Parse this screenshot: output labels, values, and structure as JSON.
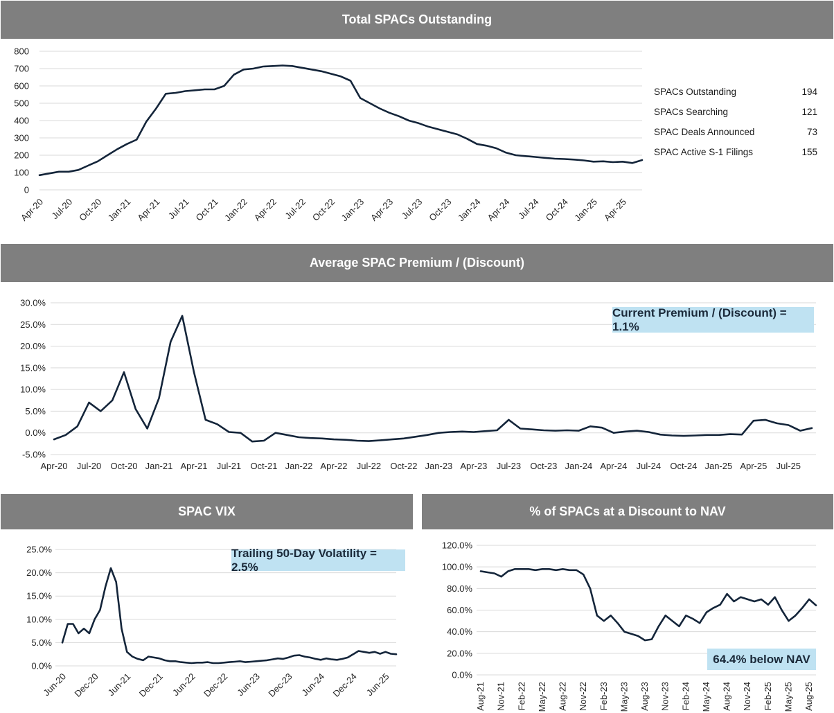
{
  "panels": {
    "outstanding_title": "Total SPACs Outstanding",
    "premium_title": "Average SPAC Premium / (Discount)",
    "vix_title": "SPAC VIX",
    "discount_title": "% of SPACs at a Discount to NAV"
  },
  "stats": [
    {
      "label": "SPACs Outstanding",
      "value": "194"
    },
    {
      "label": "SPACs Searching",
      "value": "121"
    },
    {
      "label": "SPAC Deals Announced",
      "value": "73"
    },
    {
      "label": "SPAC Active S-1 Filings",
      "value": "155"
    }
  ],
  "callouts": {
    "premium": "Current Premium / (Discount) = 1.1%",
    "vix": "Trailing 50-Day Volatility = 2.5%",
    "discount": "64.4% below NAV"
  },
  "colors": {
    "line": "#14253a",
    "header_bg": "#7f7f7f",
    "callout_bg": "#bfe2f2",
    "grid": "#d9d9d9"
  },
  "chart_data": [
    {
      "id": "outstanding",
      "type": "line",
      "title": "Total SPACs Outstanding",
      "ylim": [
        0,
        800
      ],
      "yticks": [
        "0",
        "100",
        "200",
        "300",
        "400",
        "500",
        "600",
        "700",
        "800"
      ],
      "xticks": [
        "Apr-20",
        "Jul-20",
        "Oct-20",
        "Jan-21",
        "Apr-21",
        "Jul-21",
        "Oct-21",
        "Jan-22",
        "Apr-22",
        "Jul-22",
        "Oct-22",
        "Jan-23",
        "Apr-23",
        "Jul-23",
        "Oct-23",
        "Jan-24",
        "Apr-24",
        "Jul-24",
        "Oct-24",
        "Jan-25",
        "Apr-25"
      ],
      "xtick_rotation": -45,
      "grid": true,
      "x": [
        "2020-04",
        "2020-05",
        "2020-06",
        "2020-07",
        "2020-08",
        "2020-09",
        "2020-10",
        "2020-11",
        "2020-12",
        "2021-01",
        "2021-02",
        "2021-03",
        "2021-04",
        "2021-05",
        "2021-06",
        "2021-07",
        "2021-08",
        "2021-09",
        "2021-10",
        "2021-11",
        "2021-12",
        "2022-01",
        "2022-02",
        "2022-03",
        "2022-04",
        "2022-05",
        "2022-06",
        "2022-07",
        "2022-08",
        "2022-09",
        "2022-10",
        "2022-11",
        "2022-12",
        "2023-01",
        "2023-02",
        "2023-03",
        "2023-04",
        "2023-05",
        "2023-06",
        "2023-07",
        "2023-08",
        "2023-09",
        "2023-10",
        "2023-11",
        "2023-12",
        "2024-01",
        "2024-02",
        "2024-03",
        "2024-04",
        "2024-05",
        "2024-06",
        "2024-07",
        "2024-08",
        "2024-09",
        "2024-10",
        "2024-11",
        "2024-12",
        "2025-01",
        "2025-02",
        "2025-03",
        "2025-04",
        "2025-05",
        "2025-06"
      ],
      "y": [
        85,
        95,
        105,
        105,
        115,
        140,
        165,
        200,
        235,
        265,
        290,
        395,
        470,
        555,
        560,
        570,
        575,
        580,
        580,
        600,
        665,
        695,
        700,
        712,
        715,
        718,
        715,
        705,
        695,
        685,
        670,
        655,
        630,
        530,
        500,
        470,
        445,
        425,
        400,
        385,
        365,
        350,
        335,
        320,
        295,
        265,
        255,
        240,
        215,
        200,
        195,
        190,
        185,
        180,
        178,
        175,
        170,
        163,
        165,
        160,
        163,
        155,
        172
      ]
    },
    {
      "id": "premium",
      "type": "line",
      "title": "Average SPAC Premium / (Discount)",
      "ylim": [
        -5,
        30
      ],
      "yticks": [
        "-5.0%",
        "0.0%",
        "5.0%",
        "10.0%",
        "15.0%",
        "20.0%",
        "25.0%",
        "30.0%"
      ],
      "xticks": [
        "Apr-20",
        "Jul-20",
        "Oct-20",
        "Jan-21",
        "Apr-21",
        "Jul-21",
        "Oct-21",
        "Jan-22",
        "Apr-22",
        "Jul-22",
        "Oct-22",
        "Jan-23",
        "Apr-23",
        "Jul-23",
        "Oct-23",
        "Jan-24",
        "Apr-24",
        "Jul-24",
        "Oct-24",
        "Jan-25",
        "Apr-25",
        "Jul-25"
      ],
      "grid": true,
      "x": [
        "2020-04",
        "2020-05",
        "2020-06",
        "2020-07",
        "2020-08",
        "2020-09",
        "2020-10",
        "2020-11",
        "2020-12",
        "2021-01",
        "2021-02",
        "2021-03",
        "2021-04",
        "2021-05",
        "2021-06",
        "2021-07",
        "2021-08",
        "2021-09",
        "2021-10",
        "2021-11",
        "2021-12",
        "2022-01",
        "2022-02",
        "2022-03",
        "2022-04",
        "2022-05",
        "2022-06",
        "2022-07",
        "2022-08",
        "2022-09",
        "2022-10",
        "2022-11",
        "2022-12",
        "2023-01",
        "2023-02",
        "2023-03",
        "2023-04",
        "2023-05",
        "2023-06",
        "2023-07",
        "2023-08",
        "2023-09",
        "2023-10",
        "2023-11",
        "2023-12",
        "2024-01",
        "2024-02",
        "2024-03",
        "2024-04",
        "2024-05",
        "2024-06",
        "2024-07",
        "2024-08",
        "2024-09",
        "2024-10",
        "2024-11",
        "2024-12",
        "2025-01",
        "2025-02",
        "2025-03",
        "2025-04",
        "2025-05",
        "2025-06",
        "2025-07",
        "2025-08",
        "2025-09"
      ],
      "y": [
        -1.5,
        -0.5,
        1.5,
        7,
        5,
        7.5,
        14,
        5.5,
        1,
        8,
        21,
        27,
        14,
        3,
        2,
        0.2,
        0,
        -2,
        -1.8,
        0,
        -0.5,
        -1,
        -1.2,
        -1.3,
        -1.5,
        -1.6,
        -1.8,
        -1.9,
        -1.7,
        -1.5,
        -1.3,
        -0.9,
        -0.5,
        0,
        0.2,
        0.3,
        0.2,
        0.4,
        0.6,
        3,
        1,
        0.8,
        0.6,
        0.5,
        0.6,
        0.5,
        1.5,
        1.2,
        0,
        0.3,
        0.5,
        0.2,
        -0.4,
        -0.6,
        -0.7,
        -0.6,
        -0.5,
        -0.5,
        -0.3,
        -0.4,
        2.8,
        3,
        2.2,
        1.8,
        0.5,
        1.1
      ]
    },
    {
      "id": "vix",
      "type": "line",
      "title": "SPAC VIX",
      "ylim": [
        0,
        25
      ],
      "yticks": [
        "0.0%",
        "5.0%",
        "10.0%",
        "15.0%",
        "20.0%",
        "25.0%"
      ],
      "xticks": [
        "Jun-20",
        "Dec-20",
        "Jun-21",
        "Dec-21",
        "Jun-22",
        "Dec-22",
        "Jun-23",
        "Dec-23",
        "Jun-24",
        "Dec-24",
        "Jun-25"
      ],
      "xtick_rotation": -45,
      "grid": true,
      "x": [
        "2020-06",
        "2020-07",
        "2020-08",
        "2020-09",
        "2020-10",
        "2020-11",
        "2020-12",
        "2021-01",
        "2021-02",
        "2021-03",
        "2021-04",
        "2021-05",
        "2021-06",
        "2021-07",
        "2021-08",
        "2021-09",
        "2021-10",
        "2021-11",
        "2021-12",
        "2022-01",
        "2022-02",
        "2022-03",
        "2022-04",
        "2022-05",
        "2022-06",
        "2022-07",
        "2022-08",
        "2022-09",
        "2022-10",
        "2022-11",
        "2022-12",
        "2023-01",
        "2023-02",
        "2023-03",
        "2023-04",
        "2023-05",
        "2023-06",
        "2023-07",
        "2023-08",
        "2023-09",
        "2023-10",
        "2023-11",
        "2023-12",
        "2024-01",
        "2024-02",
        "2024-03",
        "2024-04",
        "2024-05",
        "2024-06",
        "2024-07",
        "2024-08",
        "2024-09",
        "2024-10",
        "2024-11",
        "2024-12",
        "2025-01",
        "2025-02",
        "2025-03",
        "2025-04",
        "2025-05",
        "2025-06",
        "2025-07",
        "2025-08"
      ],
      "y": [
        5,
        9,
        9,
        7,
        8,
        7,
        10,
        12,
        17,
        21,
        18,
        8,
        3,
        2,
        1.5,
        1.2,
        2,
        1.8,
        1.6,
        1.2,
        1.0,
        1.0,
        0.8,
        0.7,
        0.6,
        0.7,
        0.7,
        0.8,
        0.6,
        0.6,
        0.7,
        0.8,
        0.9,
        1.0,
        0.8,
        0.9,
        1.0,
        1.1,
        1.2,
        1.4,
        1.6,
        1.5,
        1.8,
        2.2,
        2.3,
        2.0,
        1.8,
        1.5,
        1.3,
        1.6,
        1.4,
        1.3,
        1.5,
        1.8,
        2.5,
        3.2,
        3.0,
        2.8,
        3.0,
        2.6,
        3.0,
        2.6,
        2.5
      ]
    },
    {
      "id": "discount",
      "type": "line",
      "title": "% of SPACs at a Discount to NAV",
      "ylim": [
        0,
        120
      ],
      "yticks": [
        "0.0%",
        "20.0%",
        "40.0%",
        "60.0%",
        "80.0%",
        "100.0%",
        "120.0%"
      ],
      "xticks": [
        "Aug-21",
        "Nov-21",
        "Feb-22",
        "May-22",
        "Aug-22",
        "Nov-22",
        "Feb-23",
        "May-23",
        "Aug-23",
        "Nov-23",
        "Feb-24",
        "May-24",
        "Aug-24",
        "Nov-24",
        "Feb-25",
        "May-25",
        "Aug-25"
      ],
      "xtick_rotation": -90,
      "grid": true,
      "x": [
        "2021-08",
        "2021-09",
        "2021-10",
        "2021-11",
        "2021-12",
        "2022-01",
        "2022-02",
        "2022-03",
        "2022-04",
        "2022-05",
        "2022-06",
        "2022-07",
        "2022-08",
        "2022-09",
        "2022-10",
        "2022-11",
        "2022-12",
        "2023-01",
        "2023-02",
        "2023-03",
        "2023-04",
        "2023-05",
        "2023-06",
        "2023-07",
        "2023-08",
        "2023-09",
        "2023-10",
        "2023-11",
        "2023-12",
        "2024-01",
        "2024-02",
        "2024-03",
        "2024-04",
        "2024-05",
        "2024-06",
        "2024-07",
        "2024-08",
        "2024-09",
        "2024-10",
        "2024-11",
        "2024-12",
        "2025-01",
        "2025-02",
        "2025-03",
        "2025-04",
        "2025-05",
        "2025-06",
        "2025-07",
        "2025-08",
        "2025-09"
      ],
      "y": [
        96,
        95,
        94,
        91,
        96,
        98,
        98,
        98,
        97,
        98,
        98,
        97,
        98,
        97,
        97,
        93,
        80,
        55,
        50,
        55,
        48,
        40,
        38,
        36,
        32,
        33,
        45,
        55,
        50,
        45,
        55,
        52,
        48,
        58,
        62,
        65,
        75,
        68,
        72,
        70,
        68,
        70,
        65,
        72,
        60,
        50,
        55,
        62,
        70,
        64.4
      ]
    }
  ]
}
